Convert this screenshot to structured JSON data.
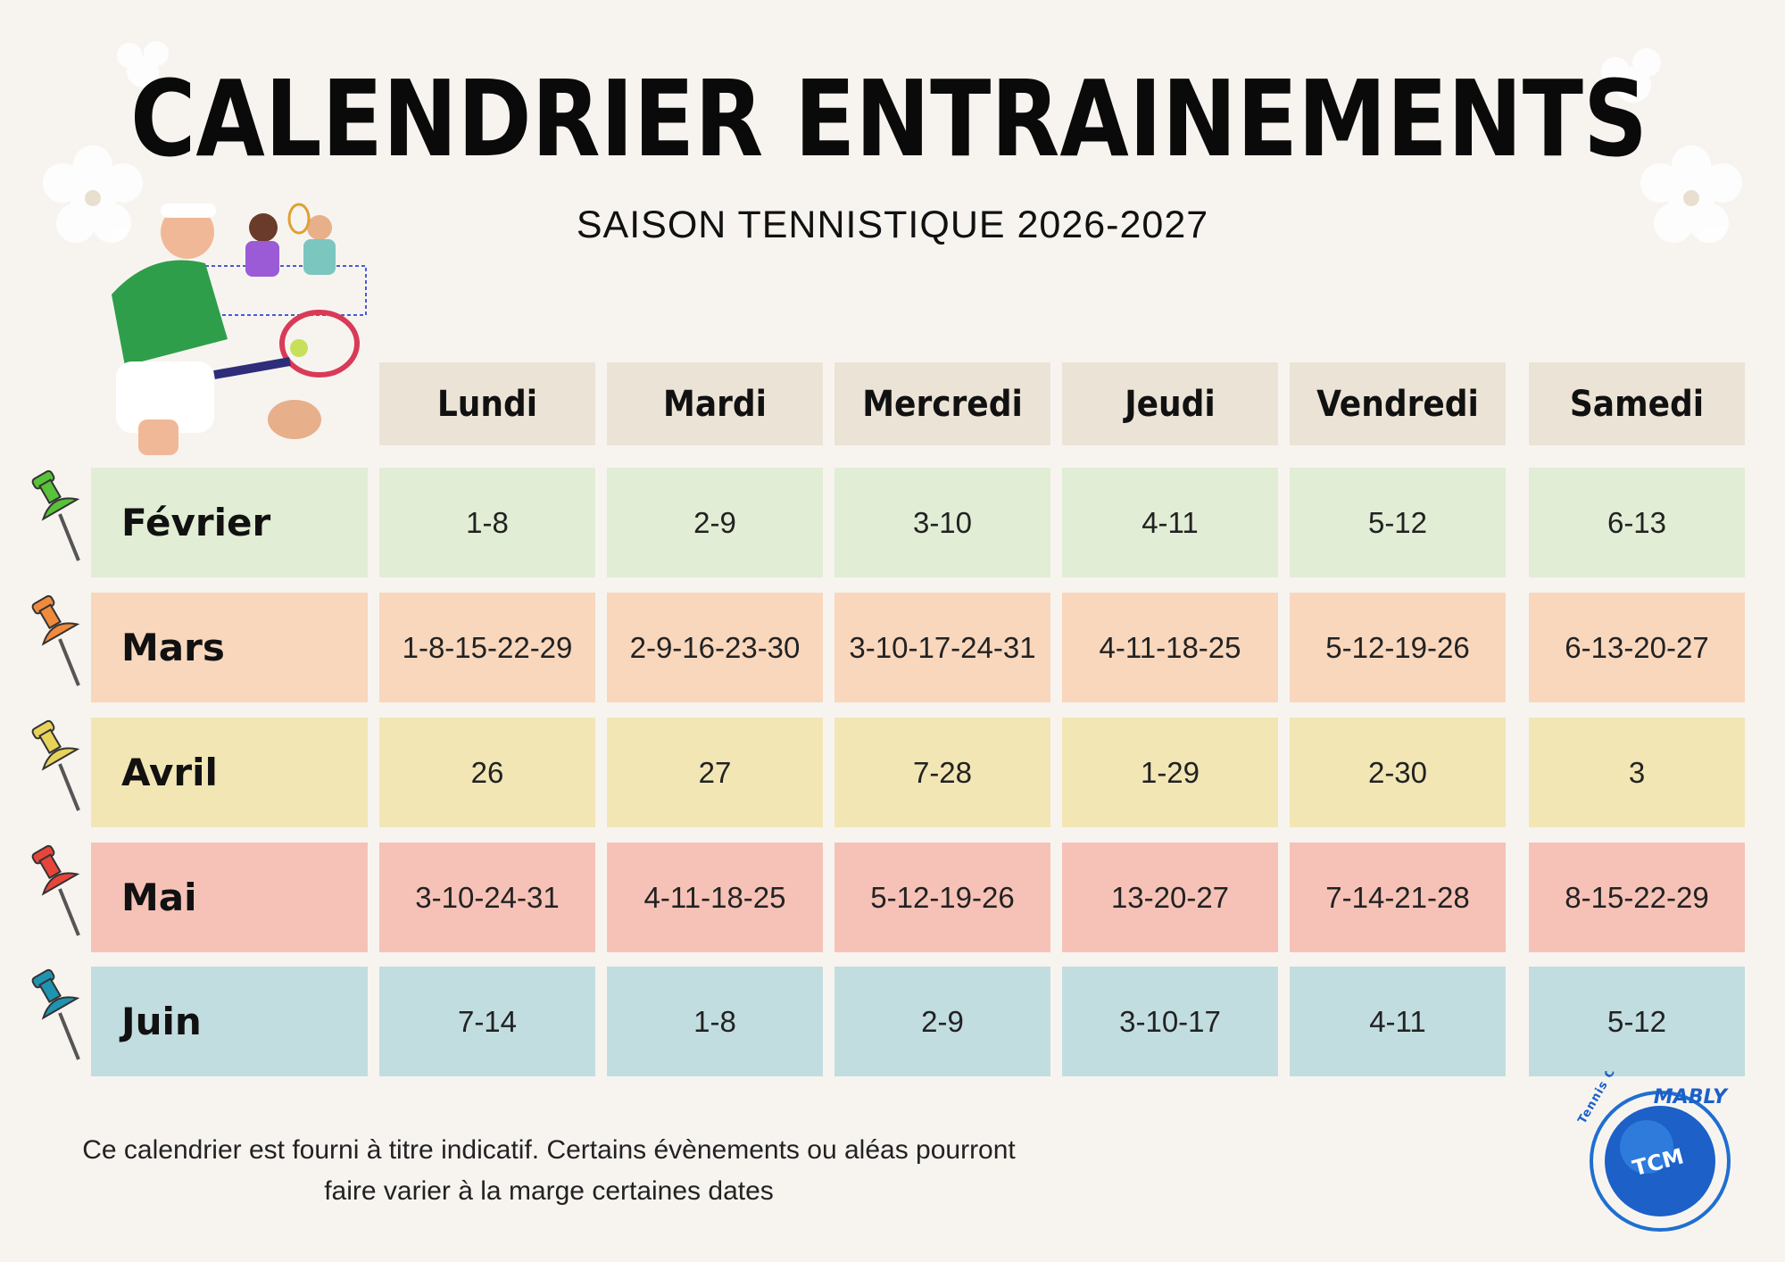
{
  "header": {
    "title": "CALENDRIER ENTRAINEMENTS",
    "subtitle": "SAISON TENNISTIQUE 2026-2027"
  },
  "table": {
    "columns": [
      "Lundi",
      "Mardi",
      "Mercredi",
      "Jeudi",
      "Vendredi",
      "Samedi"
    ],
    "rows": [
      {
        "month": "Février",
        "dates": [
          "1-8",
          "2-9",
          "3-10",
          "4-11",
          "5-12",
          "6-13"
        ]
      },
      {
        "month": "Mars",
        "dates": [
          "1-8-15-22-29",
          "2-9-16-23-30",
          "3-10-17-24-31",
          "4-11-18-25",
          "5-12-19-26",
          "6-13-20-27"
        ]
      },
      {
        "month": "Avril",
        "dates": [
          "26",
          "27",
          "7-28",
          "1-29",
          "2-30",
          "3"
        ]
      },
      {
        "month": "Mai",
        "dates": [
          "3-10-24-31",
          "4-11-18-25",
          "5-12-19-26",
          "13-20-27",
          "7-14-21-28",
          "8-15-22-29"
        ]
      },
      {
        "month": "Juin",
        "dates": [
          "7-14",
          "1-8",
          "2-9",
          "3-10-17",
          "4-11",
          "5-12"
        ]
      }
    ]
  },
  "footer": {
    "lines": [
      "Ce calendrier est fourni à titre indicatif. Certains évènements ou aléas pourront",
      "faire varier à la marge certaines dates"
    ]
  },
  "logo": {
    "club": "Tennis Club",
    "name": "MABLY",
    "initials": "TCM"
  }
}
